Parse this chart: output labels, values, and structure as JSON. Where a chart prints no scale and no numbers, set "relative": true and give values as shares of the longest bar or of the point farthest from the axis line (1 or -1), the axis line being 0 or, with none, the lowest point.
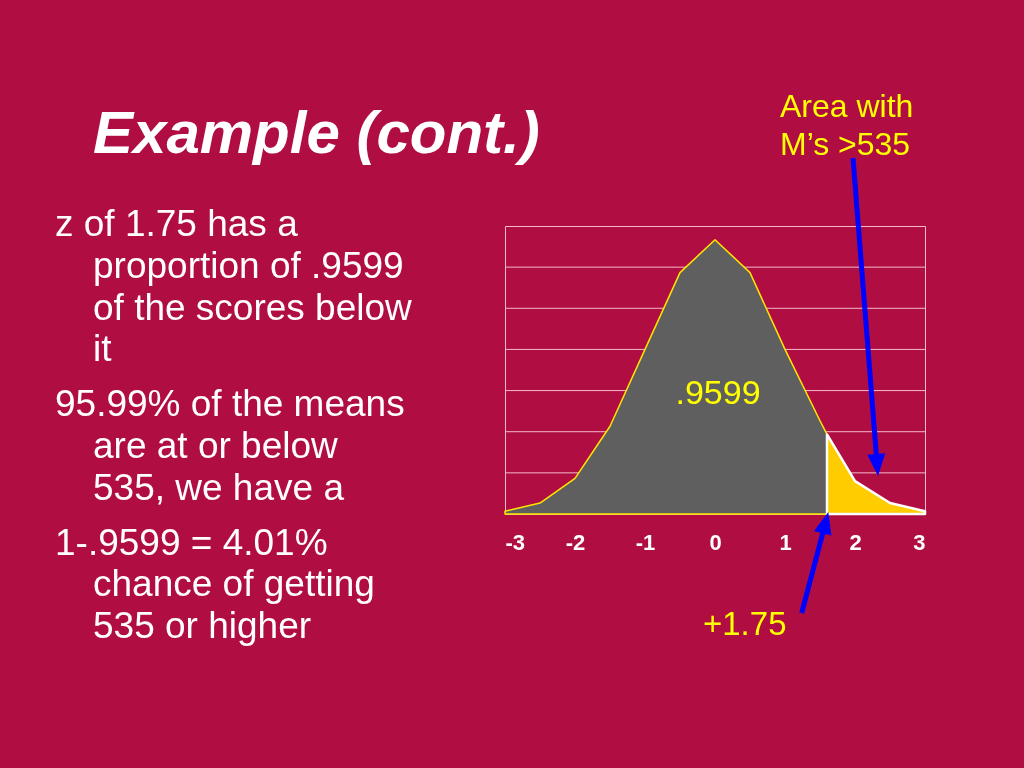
{
  "chart_data": {
    "type": "area",
    "title": "Example (cont.)",
    "relative": true,
    "xlim": [
      -3,
      3
    ],
    "xticks": [
      -3,
      -2,
      -1,
      0,
      1,
      2,
      3
    ],
    "series": [
      {
        "color": "#5f5f5f",
        "x": [
          -3,
          -2.5,
          -2,
          -1.5,
          -1,
          -0.5,
          0,
          0.5,
          1,
          1.5,
          1.6
        ],
        "values": [
          0.01,
          0.04,
          0.13,
          0.32,
          0.6,
          0.88,
          1,
          0.88,
          0.6,
          0.34,
          0.29
        ]
      },
      {
        "color": "#ffcc00",
        "x": [
          1.6,
          2,
          2.5,
          3
        ],
        "values": [
          0.29,
          0.12,
          0.04,
          0.01
        ]
      }
    ],
    "ref_lines": [
      {
        "axis": "y",
        "value": 0.15,
        "color": "#f3b9cb"
      },
      {
        "axis": "y",
        "value": 0.3,
        "color": "#f3b9cb"
      },
      {
        "axis": "y",
        "value": 0.45,
        "color": "#f3b9cb"
      },
      {
        "axis": "y",
        "value": 0.6,
        "color": "#f3b9cb"
      },
      {
        "axis": "y",
        "value": 0.75,
        "color": "#f3b9cb"
      },
      {
        "axis": "y",
        "value": 0.9,
        "color": "#f3b9cb"
      }
    ],
    "annotations": [
      "z of 1.75 has a proportion of .9599 of the scores below it",
      "95.99% of the means are at or below 535, we have a",
      "1-.9599 = 4.01% chance of getting 535 or higher",
      ".9599",
      "Area with M’s >535",
      "+1.75"
    ]
  }
}
